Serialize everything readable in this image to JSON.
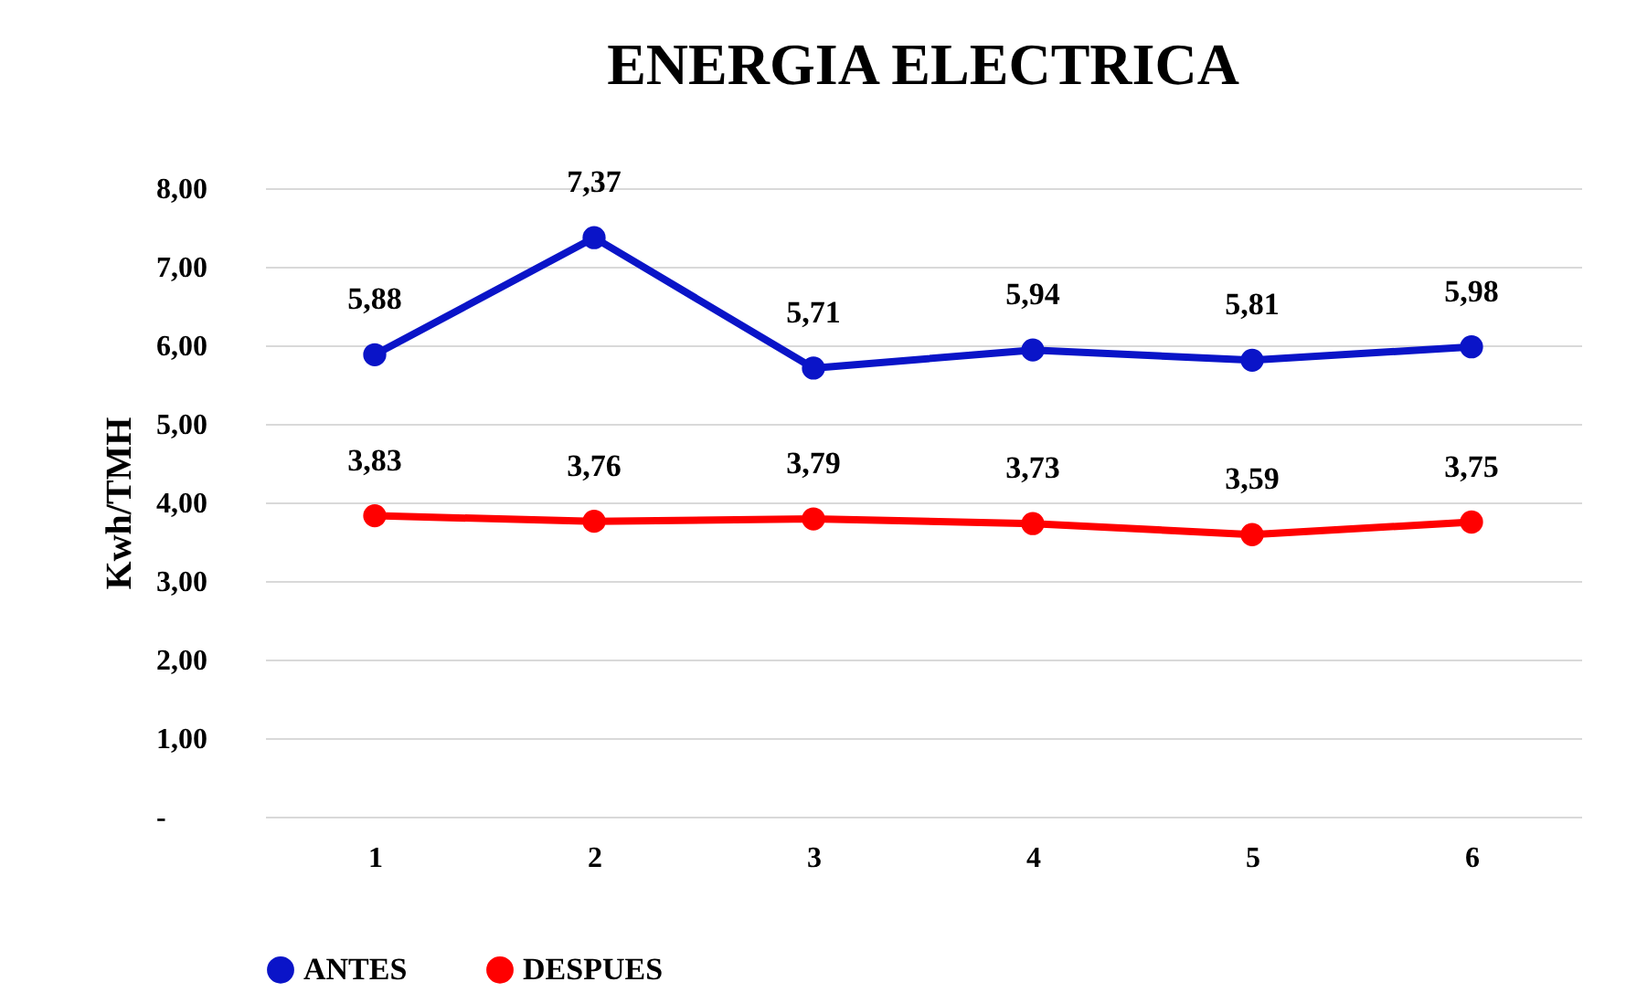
{
  "chart_data": {
    "type": "line",
    "title": "ENERGIA ELECTRICA",
    "ylabel": "Kwh/TMH",
    "categories": [
      "1",
      "2",
      "3",
      "4",
      "5",
      "6"
    ],
    "series": [
      {
        "name": "ANTES",
        "color": "#0a14c8",
        "values": [
          5.88,
          7.37,
          5.71,
          5.94,
          5.81,
          5.98
        ],
        "value_labels": [
          "5,88",
          "7,37",
          "5,71",
          "5,94",
          "5,81",
          "5,98"
        ]
      },
      {
        "name": "DESPUES",
        "color": "#ff0000",
        "values": [
          3.83,
          3.76,
          3.79,
          3.73,
          3.59,
          3.75
        ],
        "value_labels": [
          "3,83",
          "3,76",
          "3,79",
          "3,73",
          "3,59",
          "3,75"
        ]
      }
    ],
    "ylim": [
      0,
      8
    ],
    "yticks": [
      {
        "value": 0,
        "label": "-"
      },
      {
        "value": 1,
        "label": "1,00"
      },
      {
        "value": 2,
        "label": "2,00"
      },
      {
        "value": 3,
        "label": "3,00"
      },
      {
        "value": 4,
        "label": "4,00"
      },
      {
        "value": 5,
        "label": "5,00"
      },
      {
        "value": 6,
        "label": "6,00"
      },
      {
        "value": 7,
        "label": "7,00"
      },
      {
        "value": 8,
        "label": "8,00"
      }
    ],
    "grid": "y",
    "legend": "bottom",
    "marker": "circle",
    "line_style": "solid"
  }
}
